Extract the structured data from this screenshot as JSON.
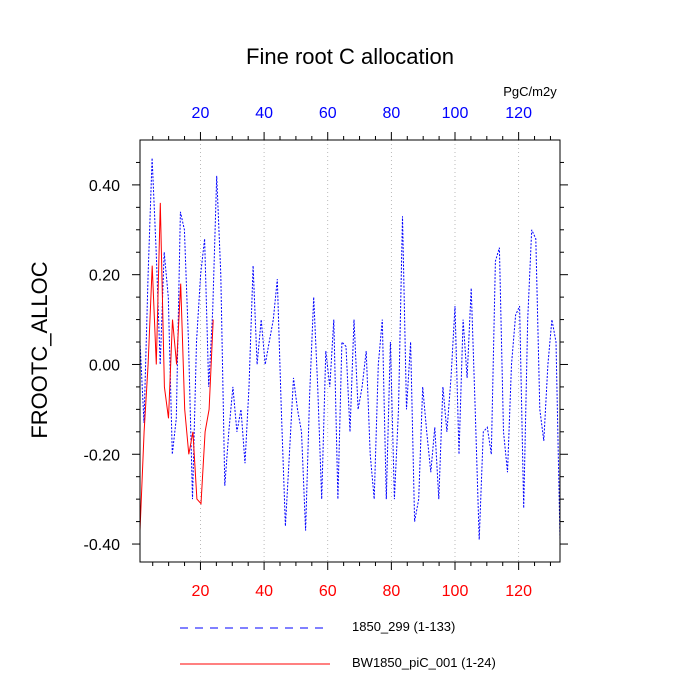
{
  "chart_data": {
    "type": "line",
    "title": "Fine root C allocation",
    "ylabel": "FROOTC_ALLOC",
    "top_axis_units": "PgC/m2y",
    "xlim": [
      1,
      133
    ],
    "ylim": [
      -0.44,
      0.5
    ],
    "grid": "vertical dotted at major ticks",
    "legend_position": "bottom",
    "x_ticks": [
      20,
      40,
      60,
      80,
      100,
      120
    ],
    "x_tick_labels": [
      "20",
      "40",
      "60",
      "80",
      "100",
      "120"
    ],
    "top_tick_labels": [
      "20",
      "40",
      "60",
      "80",
      "100",
      "120"
    ],
    "y_ticks": [
      -0.4,
      -0.2,
      0.0,
      0.2,
      0.4
    ],
    "y_tick_labels": [
      "-0.40",
      "-0.20",
      "0.00",
      "0.20",
      "0.40"
    ],
    "series": [
      {
        "name": "1850_299 (1-133)",
        "color": "#0000ff",
        "style": "dashed",
        "x_start": 1,
        "values": [
          0.05,
          -0.13,
          0.2,
          0.46,
          0.25,
          0.0,
          0.25,
          0.15,
          -0.2,
          -0.12,
          0.34,
          0.3,
          0.05,
          -0.3,
          0.05,
          0.2,
          0.28,
          -0.05,
          0.12,
          0.42,
          0.2,
          -0.27,
          -0.15,
          -0.05,
          -0.15,
          -0.1,
          -0.22,
          -0.05,
          0.22,
          0.0,
          0.1,
          0.0,
          0.05,
          0.1,
          0.19,
          -0.1,
          -0.36,
          -0.2,
          -0.03,
          -0.1,
          -0.15,
          -0.37,
          -0.07,
          0.15,
          -0.05,
          -0.3,
          0.03,
          -0.05,
          0.1,
          -0.3,
          0.05,
          0.04,
          -0.15,
          0.1,
          -0.1,
          -0.05,
          0.03,
          -0.2,
          -0.3,
          0.0,
          0.1,
          -0.3,
          0.05,
          -0.3,
          -0.1,
          0.33,
          -0.1,
          0.05,
          -0.35,
          -0.3,
          -0.05,
          -0.15,
          -0.24,
          -0.14,
          -0.3,
          -0.05,
          -0.15,
          -0.03,
          0.13,
          -0.2,
          0.1,
          -0.03,
          0.17,
          -0.1,
          -0.39,
          -0.15,
          -0.14,
          -0.2,
          0.23,
          0.26,
          -0.15,
          -0.24,
          0.0,
          0.11,
          0.13,
          -0.32,
          0.1,
          0.3,
          0.28,
          -0.1,
          -0.17,
          0.0,
          0.1,
          0.05,
          -0.39
        ]
      },
      {
        "name": "BW1850_piC_001 (1-24)",
        "color": "#ff0000",
        "style": "solid",
        "x_start": 1,
        "values": [
          -0.37,
          -0.15,
          0.0,
          0.22,
          0.0,
          0.36,
          -0.05,
          -0.12,
          0.1,
          0.0,
          0.18,
          -0.1,
          -0.2,
          -0.15,
          -0.3,
          -0.31,
          -0.15,
          -0.1,
          0.1
        ]
      }
    ]
  }
}
